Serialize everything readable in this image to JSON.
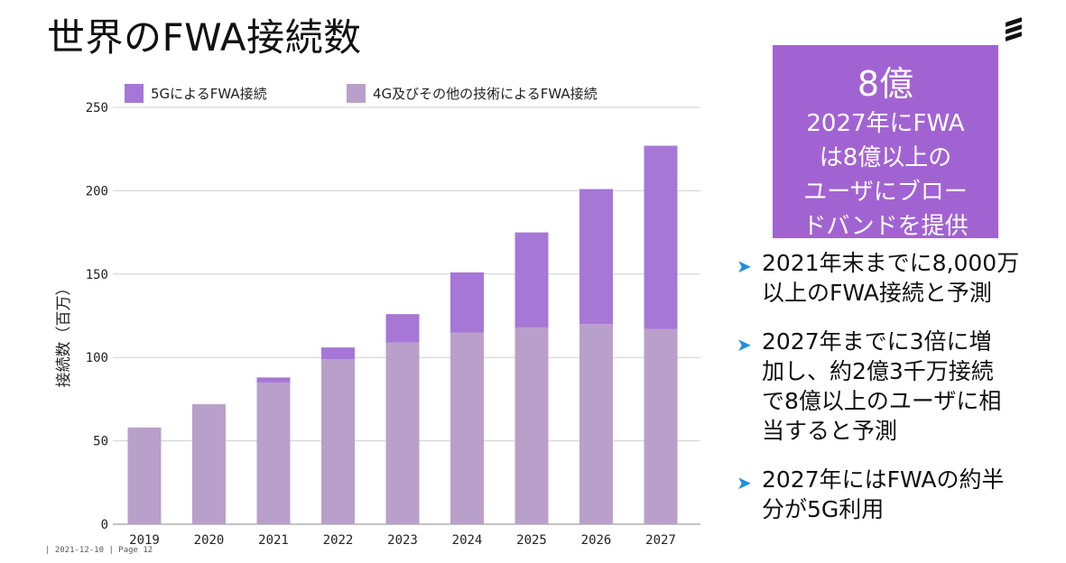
{
  "page": {
    "title": "世界のFWA接続数",
    "footer": "| 2021-12-10 | Page 12"
  },
  "callout": {
    "big_number": "8億",
    "lines": [
      "2027年にFWA",
      "は8億以上の",
      "ユーザにブロー",
      "ドバンドを提供"
    ]
  },
  "bullets": [
    {
      "icon": "arrow-right-icon",
      "lines": [
        "2021年末までに8,000万",
        "以上のFWA接続と予測"
      ]
    },
    {
      "icon": "arrow-right-icon",
      "lines": [
        "2027年までに3倍に増",
        "加し、約2億3千万接続",
        "で8億以上のユーザに相",
        "当すると予測"
      ]
    },
    {
      "icon": "arrow-right-icon",
      "lines": [
        "2027年にはFWAの約半",
        "分が5G利用"
      ]
    }
  ],
  "colors": {
    "series_5g": "#a677d6",
    "series_4g": "#b9a0ca",
    "callout_bg": "#a263d2",
    "bullet_arrow": "#1f8fe0"
  },
  "chart_data": {
    "type": "bar",
    "stacked": true,
    "categories": [
      "2019",
      "2020",
      "2021",
      "2022",
      "2023",
      "2024",
      "2025",
      "2026",
      "2027"
    ],
    "series": [
      {
        "name": "4G及びその他の技術によるFWA接続",
        "values": [
          58,
          72,
          85,
          99,
          109,
          115,
          118,
          120,
          117
        ]
      },
      {
        "name": "5GによるFWA接続",
        "values": [
          0,
          0,
          3,
          7,
          17,
          36,
          57,
          81,
          110
        ]
      }
    ],
    "ylabel": "接続数（百万）",
    "ylim": [
      0,
      250
    ],
    "yticks": [
      0,
      50,
      100,
      150,
      200,
      250
    ],
    "legend_order": [
      "5GによるFWA接続",
      "4G及びその他の技術によるFWA接続"
    ],
    "legend_position": "top",
    "grid": true
  }
}
